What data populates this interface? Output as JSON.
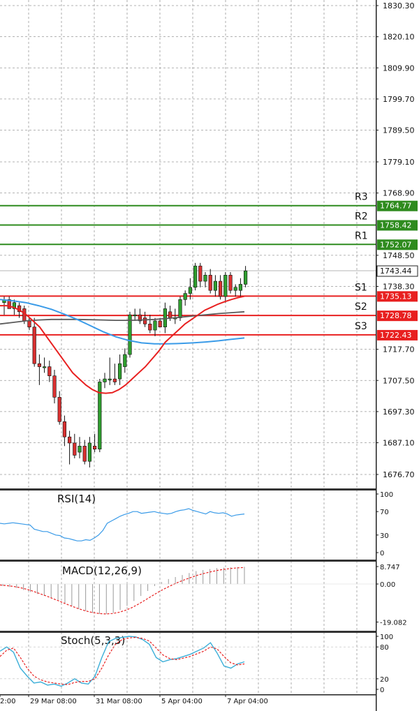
{
  "chart_data": {
    "type": "candlestick",
    "price_axis": {
      "ticks": [
        "1830.30",
        "1820.10",
        "1809.90",
        "1799.70",
        "1789.50",
        "1779.10",
        "1768.90",
        "1748.50",
        "1738.30",
        "1717.70",
        "1707.50",
        "1697.30",
        "1687.10",
        "1676.70"
      ],
      "range": [
        1673,
        1832
      ]
    },
    "time_labels": [
      "2:00",
      "29 Mar 08:00",
      "31 Mar 08:00",
      "5 Apr 04:00",
      "7 Apr 04:00"
    ],
    "current_price": "1743.44",
    "levels": [
      {
        "name": "R3",
        "value": "1764.77",
        "color": "#2e8b1e"
      },
      {
        "name": "R2",
        "value": "1758.42",
        "color": "#2e8b1e"
      },
      {
        "name": "R1",
        "value": "1752.07",
        "color": "#2e8b1e"
      },
      {
        "name": "S1",
        "value": "1735.13",
        "color": "#e82020"
      },
      {
        "name": "S2",
        "value": "1728.78",
        "color": "#e82020"
      },
      {
        "name": "S3",
        "value": "1722.43",
        "color": "#e82020"
      }
    ],
    "candles": [
      {
        "o": 1733,
        "h": 1735,
        "l": 1729,
        "c": 1734
      },
      {
        "o": 1734,
        "h": 1735,
        "l": 1731,
        "c": 1731
      },
      {
        "o": 1731,
        "h": 1734,
        "l": 1729,
        "c": 1733
      },
      {
        "o": 1732,
        "h": 1733,
        "l": 1728,
        "c": 1730
      },
      {
        "o": 1731,
        "h": 1732,
        "l": 1726,
        "c": 1727
      },
      {
        "o": 1727,
        "h": 1728,
        "l": 1724,
        "c": 1725
      },
      {
        "o": 1725,
        "h": 1728,
        "l": 1712,
        "c": 1713
      },
      {
        "o": 1713,
        "h": 1716,
        "l": 1706,
        "c": 1712
      },
      {
        "o": 1712,
        "h": 1715,
        "l": 1710,
        "c": 1712
      },
      {
        "o": 1712,
        "h": 1714,
        "l": 1707,
        "c": 1709
      },
      {
        "o": 1709,
        "h": 1711,
        "l": 1700,
        "c": 1702
      },
      {
        "o": 1702,
        "h": 1704,
        "l": 1693,
        "c": 1694
      },
      {
        "o": 1694,
        "h": 1696,
        "l": 1686,
        "c": 1689
      },
      {
        "o": 1689,
        "h": 1691,
        "l": 1680,
        "c": 1687
      },
      {
        "o": 1687,
        "h": 1690,
        "l": 1682,
        "c": 1683
      },
      {
        "o": 1684,
        "h": 1689,
        "l": 1682,
        "c": 1686
      },
      {
        "o": 1686,
        "h": 1688,
        "l": 1680,
        "c": 1681
      },
      {
        "o": 1681,
        "h": 1689,
        "l": 1679,
        "c": 1687
      },
      {
        "o": 1686,
        "h": 1690,
        "l": 1684,
        "c": 1685
      },
      {
        "o": 1685,
        "h": 1708,
        "l": 1684,
        "c": 1707
      },
      {
        "o": 1707,
        "h": 1710,
        "l": 1705,
        "c": 1708
      },
      {
        "o": 1708,
        "h": 1715,
        "l": 1706,
        "c": 1708
      },
      {
        "o": 1708,
        "h": 1713,
        "l": 1706,
        "c": 1707
      },
      {
        "o": 1708,
        "h": 1716,
        "l": 1706,
        "c": 1713
      },
      {
        "o": 1712,
        "h": 1718,
        "l": 1710,
        "c": 1716
      },
      {
        "o": 1716,
        "h": 1730,
        "l": 1715,
        "c": 1729
      },
      {
        "o": 1729,
        "h": 1731,
        "l": 1727,
        "c": 1729
      },
      {
        "o": 1729,
        "h": 1731,
        "l": 1726,
        "c": 1727
      },
      {
        "o": 1728,
        "h": 1730,
        "l": 1725,
        "c": 1726
      },
      {
        "o": 1726,
        "h": 1729,
        "l": 1723,
        "c": 1724
      },
      {
        "o": 1724,
        "h": 1728,
        "l": 1722,
        "c": 1727
      },
      {
        "o": 1727,
        "h": 1728,
        "l": 1725,
        "c": 1725
      },
      {
        "o": 1725,
        "h": 1733,
        "l": 1723,
        "c": 1731
      },
      {
        "o": 1730,
        "h": 1732,
        "l": 1727,
        "c": 1728
      },
      {
        "o": 1728,
        "h": 1731,
        "l": 1726,
        "c": 1728
      },
      {
        "o": 1728,
        "h": 1735,
        "l": 1727,
        "c": 1734
      },
      {
        "o": 1734,
        "h": 1737,
        "l": 1732,
        "c": 1736
      },
      {
        "o": 1736,
        "h": 1741,
        "l": 1734,
        "c": 1738
      },
      {
        "o": 1738,
        "h": 1746,
        "l": 1737,
        "c": 1745
      },
      {
        "o": 1745,
        "h": 1746,
        "l": 1738,
        "c": 1740
      },
      {
        "o": 1740,
        "h": 1743,
        "l": 1738,
        "c": 1742
      },
      {
        "o": 1742,
        "h": 1744,
        "l": 1736,
        "c": 1737
      },
      {
        "o": 1737,
        "h": 1742,
        "l": 1735,
        "c": 1740
      },
      {
        "o": 1740,
        "h": 1742,
        "l": 1734,
        "c": 1735
      },
      {
        "o": 1735,
        "h": 1743,
        "l": 1733,
        "c": 1742
      },
      {
        "o": 1742,
        "h": 1743,
        "l": 1736,
        "c": 1737
      },
      {
        "o": 1737,
        "h": 1739,
        "l": 1735,
        "c": 1738
      },
      {
        "o": 1737,
        "h": 1741,
        "l": 1735,
        "c": 1739
      },
      {
        "o": 1739,
        "h": 1745,
        "l": 1738,
        "c": 1743.4
      }
    ],
    "ma_red": [
      1732,
      1732,
      1731.5,
      1730.5,
      1729,
      1727,
      1725,
      1722,
      1719,
      1716,
      1713,
      1710,
      1708,
      1706,
      1704.5,
      1703.5,
      1703.3,
      1703.5,
      1704.5,
      1706,
      1708,
      1710,
      1712,
      1714.5,
      1717,
      1720,
      1722,
      1724,
      1726,
      1727.5,
      1729,
      1730.5,
      1731.5,
      1732.5,
      1733.3,
      1734,
      1734.6,
      1735.1
    ],
    "ma_gray": [
      1726,
      1726.5,
      1727,
      1727.3,
      1727.5,
      1727.5,
      1727.5,
      1727.4,
      1727.3,
      1727.2,
      1727.2,
      1727.3,
      1727.5,
      1727.8,
      1728.2,
      1728.6,
      1729,
      1729.4,
      1729.7,
      1730
    ],
    "ma_blue": [
      1734,
      1733.6,
      1733,
      1732,
      1730.8,
      1729.2,
      1727.5,
      1725.5,
      1723.5,
      1721.8,
      1720.6,
      1719.8,
      1719.5,
      1719.5,
      1719.6,
      1719.8,
      1720.1,
      1720.5,
      1721,
      1721.4
    ],
    "rsi": {
      "label": "RSI(14)",
      "ticks": [
        "100",
        "70",
        "30",
        "0"
      ],
      "values": [
        50,
        49,
        50,
        51,
        50,
        49,
        48,
        47,
        40,
        38,
        36,
        36,
        33,
        30,
        29,
        25,
        24,
        22,
        20,
        20,
        22,
        21,
        25,
        30,
        38,
        50,
        54,
        58,
        62,
        65,
        67,
        70,
        70,
        67,
        68,
        69,
        70,
        68,
        67,
        66,
        67,
        70,
        72,
        73,
        75,
        72,
        70,
        68,
        66,
        70,
        68,
        67,
        68,
        66,
        62,
        64,
        65,
        66
      ]
    },
    "macd": {
      "label": "MACD(12,26,9)",
      "ticks": [
        "8.747",
        "0.00",
        "-19.082"
      ],
      "histogram": [
        -1,
        -1.5,
        -2,
        -3,
        -4,
        -5,
        -6,
        -7,
        -8,
        -9.5,
        -11,
        -12.5,
        -13.5,
        -14.5,
        -15,
        -15,
        -14.5,
        -13,
        -11,
        -8.5,
        -6,
        -3.5,
        -1,
        1,
        2.5,
        3.5,
        4.5,
        5.5,
        6.5,
        7,
        7.5,
        8,
        8.2,
        8.4,
        8.5,
        8.6
      ],
      "signal": [
        -0.5,
        -0.8,
        -1.2,
        -1.8,
        -2.6,
        -3.6,
        -4.8,
        -6,
        -7.3,
        -8.6,
        -10,
        -11.3,
        -12.5,
        -13.5,
        -14.3,
        -14.8,
        -15,
        -14.8,
        -14.2,
        -13.2,
        -11.8,
        -10,
        -8,
        -6,
        -4,
        -2.2,
        -0.6,
        0.9,
        2.2,
        3.4,
        4.5,
        5.4,
        6.2,
        6.9,
        7.4,
        7.8,
        8.1,
        8.3
      ]
    },
    "stoch": {
      "label": "Stoch(5,3,3)",
      "ticks": [
        "100",
        "80",
        "20",
        "0"
      ],
      "k": [
        72,
        80,
        70,
        40,
        25,
        12,
        14,
        8,
        10,
        6,
        12,
        20,
        12,
        10,
        25,
        60,
        90,
        96,
        98,
        100,
        99,
        94,
        85,
        60,
        52,
        56,
        58,
        62,
        66,
        72,
        78,
        88,
        68,
        44,
        40,
        48,
        52
      ],
      "d": [
        62,
        74,
        78,
        60,
        40,
        25,
        18,
        14,
        12,
        10,
        9,
        13,
        15,
        15,
        20,
        40,
        65,
        85,
        94,
        97,
        98,
        96,
        91,
        78,
        65,
        58,
        56,
        59,
        62,
        67,
        72,
        80,
        76,
        62,
        50,
        46,
        48
      ]
    }
  }
}
